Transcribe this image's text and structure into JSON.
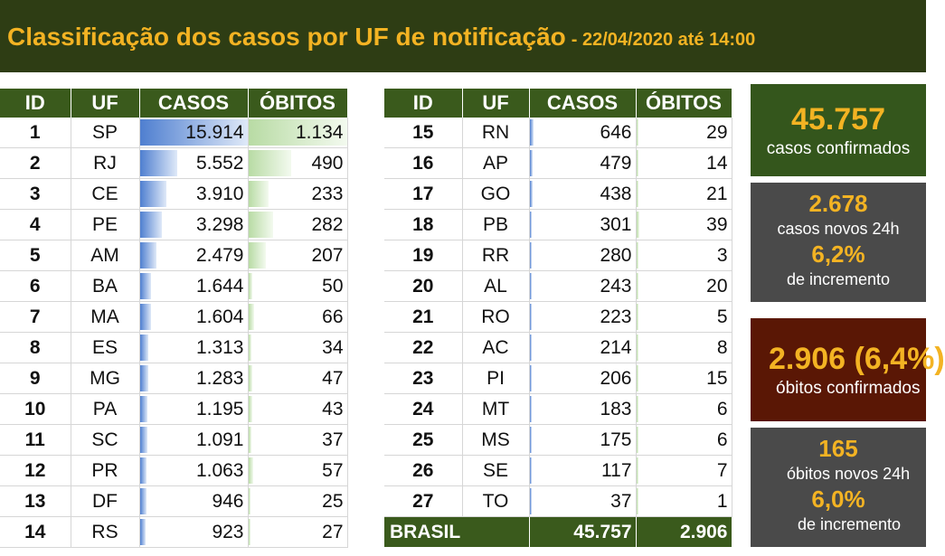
{
  "header": {
    "title": "Classificação dos casos por UF de notificação",
    "date": "- 22/04/2020 até 14:00"
  },
  "columns": {
    "id": "ID",
    "uf": "UF",
    "casos": "CASOS",
    "obitos": "ÓBITOS"
  },
  "rows": [
    {
      "id": "1",
      "uf": "SP",
      "casos": "15.914",
      "obitos": "1.134",
      "casos_n": 15914,
      "obitos_n": 1134
    },
    {
      "id": "2",
      "uf": "RJ",
      "casos": "5.552",
      "obitos": "490",
      "casos_n": 5552,
      "obitos_n": 490
    },
    {
      "id": "3",
      "uf": "CE",
      "casos": "3.910",
      "obitos": "233",
      "casos_n": 3910,
      "obitos_n": 233
    },
    {
      "id": "4",
      "uf": "PE",
      "casos": "3.298",
      "obitos": "282",
      "casos_n": 3298,
      "obitos_n": 282
    },
    {
      "id": "5",
      "uf": "AM",
      "casos": "2.479",
      "obitos": "207",
      "casos_n": 2479,
      "obitos_n": 207
    },
    {
      "id": "6",
      "uf": "BA",
      "casos": "1.644",
      "obitos": "50",
      "casos_n": 1644,
      "obitos_n": 50
    },
    {
      "id": "7",
      "uf": "MA",
      "casos": "1.604",
      "obitos": "66",
      "casos_n": 1604,
      "obitos_n": 66
    },
    {
      "id": "8",
      "uf": "ES",
      "casos": "1.313",
      "obitos": "34",
      "casos_n": 1313,
      "obitos_n": 34
    },
    {
      "id": "9",
      "uf": "MG",
      "casos": "1.283",
      "obitos": "47",
      "casos_n": 1283,
      "obitos_n": 47
    },
    {
      "id": "10",
      "uf": "PA",
      "casos": "1.195",
      "obitos": "43",
      "casos_n": 1195,
      "obitos_n": 43
    },
    {
      "id": "11",
      "uf": "SC",
      "casos": "1.091",
      "obitos": "37",
      "casos_n": 1091,
      "obitos_n": 37
    },
    {
      "id": "12",
      "uf": "PR",
      "casos": "1.063",
      "obitos": "57",
      "casos_n": 1063,
      "obitos_n": 57
    },
    {
      "id": "13",
      "uf": "DF",
      "casos": "946",
      "obitos": "25",
      "casos_n": 946,
      "obitos_n": 25
    },
    {
      "id": "14",
      "uf": "RS",
      "casos": "923",
      "obitos": "27",
      "casos_n": 923,
      "obitos_n": 27
    },
    {
      "id": "15",
      "uf": "RN",
      "casos": "646",
      "obitos": "29",
      "casos_n": 646,
      "obitos_n": 29
    },
    {
      "id": "16",
      "uf": "AP",
      "casos": "479",
      "obitos": "14",
      "casos_n": 479,
      "obitos_n": 14
    },
    {
      "id": "17",
      "uf": "GO",
      "casos": "438",
      "obitos": "21",
      "casos_n": 438,
      "obitos_n": 21
    },
    {
      "id": "18",
      "uf": "PB",
      "casos": "301",
      "obitos": "39",
      "casos_n": 301,
      "obitos_n": 39
    },
    {
      "id": "19",
      "uf": "RR",
      "casos": "280",
      "obitos": "3",
      "casos_n": 280,
      "obitos_n": 3
    },
    {
      "id": "20",
      "uf": "AL",
      "casos": "243",
      "obitos": "20",
      "casos_n": 243,
      "obitos_n": 20
    },
    {
      "id": "21",
      "uf": "RO",
      "casos": "223",
      "obitos": "5",
      "casos_n": 223,
      "obitos_n": 5
    },
    {
      "id": "22",
      "uf": "AC",
      "casos": "214",
      "obitos": "8",
      "casos_n": 214,
      "obitos_n": 8
    },
    {
      "id": "23",
      "uf": "PI",
      "casos": "206",
      "obitos": "15",
      "casos_n": 206,
      "obitos_n": 15
    },
    {
      "id": "24",
      "uf": "MT",
      "casos": "183",
      "obitos": "6",
      "casos_n": 183,
      "obitos_n": 6
    },
    {
      "id": "25",
      "uf": "MS",
      "casos": "175",
      "obitos": "6",
      "casos_n": 175,
      "obitos_n": 6
    },
    {
      "id": "26",
      "uf": "SE",
      "casos": "117",
      "obitos": "7",
      "casos_n": 117,
      "obitos_n": 7
    },
    {
      "id": "27",
      "uf": "TO",
      "casos": "37",
      "obitos": "1",
      "casos_n": 37,
      "obitos_n": 1
    }
  ],
  "total": {
    "label": "BRASIL",
    "casos": "45.757",
    "obitos": "2.906"
  },
  "cards": {
    "confirmed": {
      "value": "45.757",
      "label": "casos confirmados"
    },
    "new_cases": {
      "value": "2.678",
      "label": "casos novos 24h",
      "pct": "6,2%",
      "pct_label": "de incremento"
    },
    "deaths": {
      "value": "2.906 (6,4%)",
      "label": "óbitos confirmados"
    },
    "new_deaths": {
      "value": "165",
      "label": "óbitos novos 24h",
      "pct": "6,0%",
      "pct_label": "de incremento"
    }
  },
  "colors": {
    "header_bg": "#2e3d14",
    "accent": "#f3b323",
    "table_header": "#3a5a1c",
    "casos_bar": "#4f7fd0",
    "obitos_bar": "#b8dba4",
    "card_green": "#34561c",
    "card_gray": "#4a4a4a",
    "card_red": "#5a1705"
  }
}
